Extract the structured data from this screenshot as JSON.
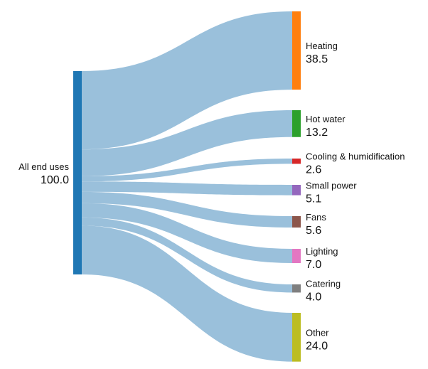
{
  "chart_data": {
    "type": "sankey",
    "title": "",
    "source": {
      "label": "All end uses",
      "value": "100.0",
      "color": "#1f77b4"
    },
    "link_color": "#9ac0db",
    "targets": [
      {
        "label": "Heating",
        "value": 38.5,
        "display": "38.5",
        "color": "#ff7f0e"
      },
      {
        "label": "Hot water",
        "value": 13.2,
        "display": "13.2",
        "color": "#2ca02c"
      },
      {
        "label": "Cooling & humidification",
        "value": 2.6,
        "display": "2.6",
        "color": "#d62728"
      },
      {
        "label": "Small power",
        "value": 5.1,
        "display": "5.1",
        "color": "#9467bd"
      },
      {
        "label": "Fans",
        "value": 5.6,
        "display": "5.6",
        "color": "#8c564b"
      },
      {
        "label": "Lighting",
        "value": 7.0,
        "display": "7.0",
        "color": "#e377c2"
      },
      {
        "label": "Catering",
        "value": 4.0,
        "display": "4.0",
        "color": "#7f7f7f"
      },
      {
        "label": "Other",
        "value": 24.0,
        "display": "24.0",
        "color": "#bcbd22"
      }
    ]
  }
}
